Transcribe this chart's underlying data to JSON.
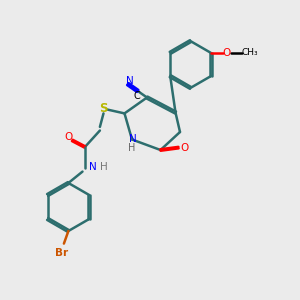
{
  "background_color": "#ebebeb",
  "bond_color": "#2d6e6e",
  "lw": 1.8,
  "xlim": [
    0,
    10
  ],
  "ylim": [
    0,
    10
  ]
}
